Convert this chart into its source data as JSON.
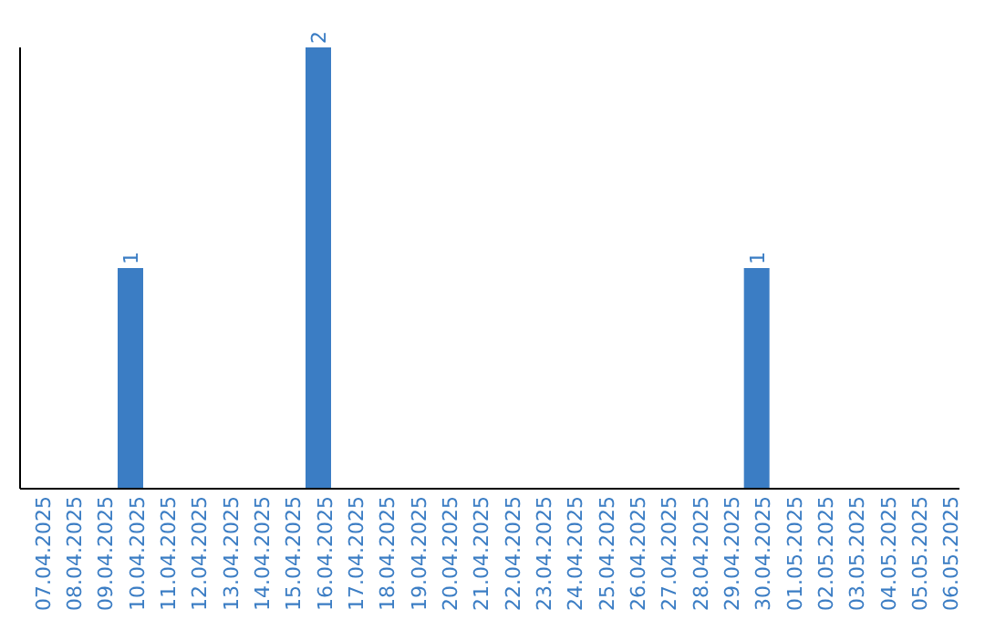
{
  "chart_data": {
    "type": "bar",
    "categories": [
      "07.04.2025",
      "08.04.2025",
      "09.04.2025",
      "10.04.2025",
      "11.04.2025",
      "12.04.2025",
      "13.04.2025",
      "14.04.2025",
      "15.04.2025",
      "16.04.2025",
      "17.04.2025",
      "18.04.2025",
      "19.04.2025",
      "20.04.2025",
      "21.04.2025",
      "22.04.2025",
      "23.04.2025",
      "24.04.2025",
      "25.04.2025",
      "26.04.2025",
      "27.04.2025",
      "28.04.2025",
      "29.04.2025",
      "30.04.2025",
      "01.05.2025",
      "02.05.2025",
      "03.05.2025",
      "04.05.2025",
      "05.05.2025",
      "06.05.2025"
    ],
    "values": [
      0,
      0,
      0,
      1,
      0,
      0,
      0,
      0,
      0,
      2,
      0,
      0,
      0,
      0,
      0,
      0,
      0,
      0,
      0,
      0,
      0,
      0,
      0,
      1,
      0,
      0,
      0,
      0,
      0,
      0
    ],
    "value_labels": [
      null,
      null,
      null,
      "1",
      null,
      null,
      null,
      null,
      null,
      "2",
      null,
      null,
      null,
      null,
      null,
      null,
      null,
      null,
      null,
      null,
      null,
      null,
      null,
      "1",
      null,
      null,
      null,
      null,
      null,
      null
    ],
    "color": "#3b7dc4",
    "grid": false,
    "legend": false
  }
}
